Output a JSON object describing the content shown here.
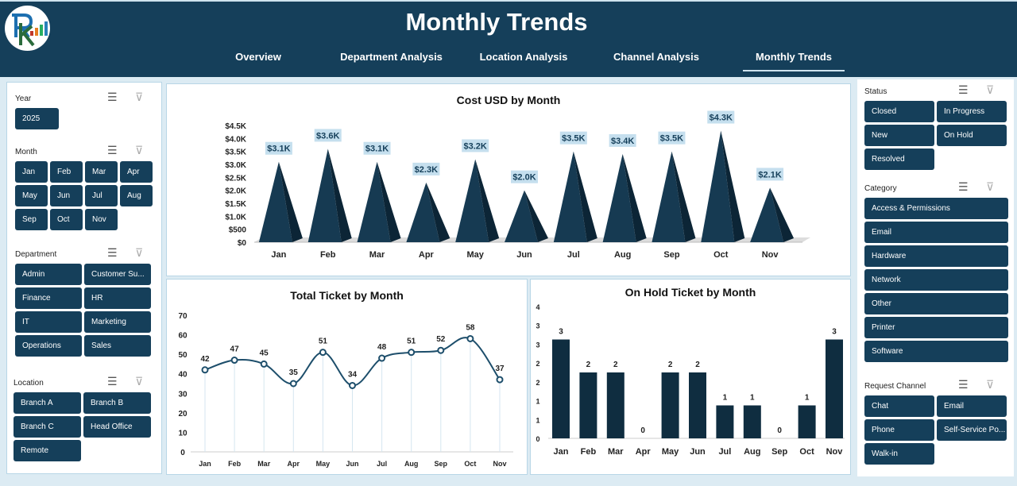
{
  "header": {
    "title": "Monthly Trends",
    "logo_text": "RK",
    "tabs": [
      {
        "label": "Overview"
      },
      {
        "label": "Department Analysis"
      },
      {
        "label": "Location Analysis"
      },
      {
        "label": "Channel Analysis"
      },
      {
        "label": "Monthly Trends",
        "active": true
      }
    ]
  },
  "colors": {
    "header": "#153f5a",
    "button": "#153f5a",
    "background": "#dcebf3",
    "label_bg": "#c5dfee"
  },
  "left_slicers": {
    "year": {
      "label": "Year",
      "items": [
        "2025"
      ]
    },
    "month": {
      "label": "Month",
      "items": [
        "Jan",
        "Feb",
        "Mar",
        "Apr",
        "May",
        "Jun",
        "Jul",
        "Aug",
        "Sep",
        "Oct",
        "Nov"
      ]
    },
    "department": {
      "label": "Department",
      "items": [
        "Admin",
        "Customer Su...",
        "Finance",
        "HR",
        "IT",
        "Marketing",
        "Operations",
        "Sales"
      ]
    },
    "location": {
      "label": "Location",
      "items": [
        "Branch A",
        "Branch B",
        "Branch C",
        "Head Office",
        "Remote"
      ]
    }
  },
  "right_slicers": {
    "status": {
      "label": "Status",
      "items": [
        "Closed",
        "In Progress",
        "New",
        "On Hold",
        "Resolved"
      ]
    },
    "category": {
      "label": "Category",
      "items": [
        "Access & Permissions",
        "Email",
        "Hardware",
        "Network",
        "Other",
        "Printer",
        "Software"
      ]
    },
    "channel": {
      "label": "Request Channel",
      "items": [
        "Chat",
        "Email",
        "Phone",
        "Self-Service Po...",
        "Walk-in"
      ]
    }
  },
  "chart_data": [
    {
      "type": "bar",
      "shape": "pyramid",
      "title": "Cost USD by Month",
      "categories": [
        "Jan",
        "Feb",
        "Mar",
        "Apr",
        "May",
        "Jun",
        "Jul",
        "Aug",
        "Sep",
        "Oct",
        "Nov"
      ],
      "values": [
        3100,
        3600,
        3100,
        2300,
        3200,
        2000,
        3500,
        3400,
        3500,
        4300,
        2100
      ],
      "data_labels": [
        "$3.1K",
        "$3.6K",
        "$3.1K",
        "$2.3K",
        "$3.2K",
        "$2.0K",
        "$3.5K",
        "$3.4K",
        "$3.5K",
        "$4.3K",
        "$2.1K"
      ],
      "yticks": [
        "$0",
        "$500",
        "$1.0K",
        "$1.5K",
        "$2.0K",
        "$2.5K",
        "$3.0K",
        "$3.5K",
        "$4.0K",
        "$4.5K"
      ],
      "ylim": [
        0,
        4500
      ]
    },
    {
      "type": "line",
      "title": "Total Ticket by Month",
      "categories": [
        "Jan",
        "Feb",
        "Mar",
        "Apr",
        "May",
        "Jun",
        "Jul",
        "Aug",
        "Sep",
        "Oct",
        "Nov"
      ],
      "values": [
        42,
        47,
        45,
        35,
        51,
        34,
        48,
        51,
        52,
        58,
        37
      ],
      "yticks": [
        "0",
        "10",
        "20",
        "30",
        "40",
        "50",
        "60",
        "70"
      ],
      "ylim": [
        0,
        70
      ]
    },
    {
      "type": "bar",
      "title": "On Hold Ticket by Month",
      "categories": [
        "Jan",
        "Feb",
        "Mar",
        "Apr",
        "May",
        "Jun",
        "Jul",
        "Aug",
        "Sep",
        "Oct",
        "Nov"
      ],
      "values": [
        3,
        2,
        2,
        0,
        2,
        2,
        1,
        1,
        0,
        1,
        3
      ],
      "yticks": [
        "0",
        "1",
        "1",
        "2",
        "2",
        "3",
        "3",
        "4"
      ],
      "ylim": [
        0,
        4
      ]
    }
  ]
}
